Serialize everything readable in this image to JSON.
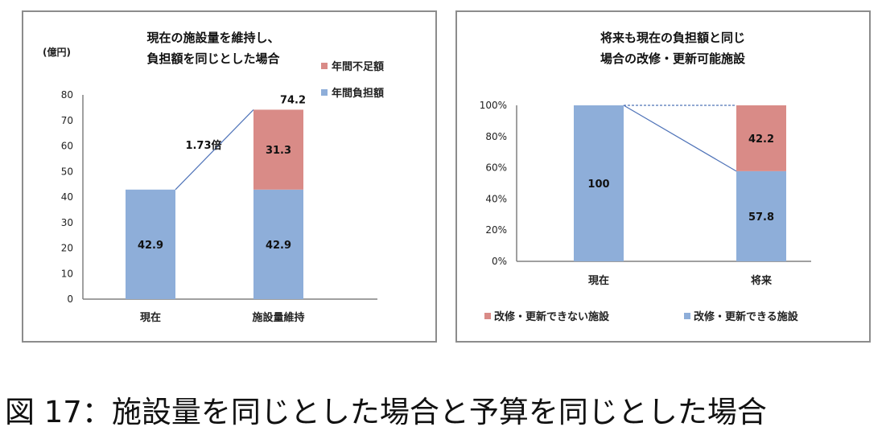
{
  "caption": "図 17：施設量を同じとした場合と予算を同じとした場合",
  "colors": {
    "unfunded": "#d98b87",
    "funded": "#8eaed9",
    "line": "#4f73b8",
    "axis": "#808080"
  },
  "chart_data": [
    {
      "type": "bar",
      "stacked": true,
      "title_lines": [
        "現在の施設量を維持し、",
        "負担額を同じとした場合"
      ],
      "unit_label": "(億円)",
      "categories": [
        "現在",
        "施設量維持"
      ],
      "series": [
        {
          "name": "年間負担額",
          "values": [
            42.9,
            42.9
          ]
        },
        {
          "name": "年間不足額",
          "values": [
            0,
            31.3
          ]
        }
      ],
      "totals": [
        null,
        "74.2"
      ],
      "data_labels": {
        "年間負担額": [
          "42.9",
          "42.9"
        ],
        "年間不足額": [
          "",
          "31.3"
        ]
      },
      "ratio_annotation": "1.73倍",
      "ylim": [
        0,
        80
      ],
      "yticks": [
        "0",
        "10",
        "20",
        "30",
        "40",
        "50",
        "60",
        "70",
        "80"
      ],
      "legend": [
        "年間不足額",
        "年間負担額"
      ],
      "legend_position": "top-right"
    },
    {
      "type": "bar",
      "stacked": true,
      "title_lines": [
        "将来も現在の負担額と同じ",
        "場合の改修・更新可能施設"
      ],
      "categories": [
        "現在",
        "将来"
      ],
      "series": [
        {
          "name": "改修・更新できる施設",
          "values": [
            100,
            57.8
          ]
        },
        {
          "name": "改修・更新できない施設",
          "values": [
            0,
            42.2
          ]
        }
      ],
      "data_labels": {
        "改修・更新できる施設": [
          "100",
          "57.8"
        ],
        "改修・更新できない施設": [
          "",
          "42.2"
        ]
      },
      "ylim": [
        0,
        100
      ],
      "yticks": [
        "0%",
        "20%",
        "40%",
        "60%",
        "80%",
        "100%"
      ],
      "legend": [
        "改修・更新できない施設",
        "改修・更新できる施設"
      ],
      "legend_position": "bottom"
    }
  ]
}
